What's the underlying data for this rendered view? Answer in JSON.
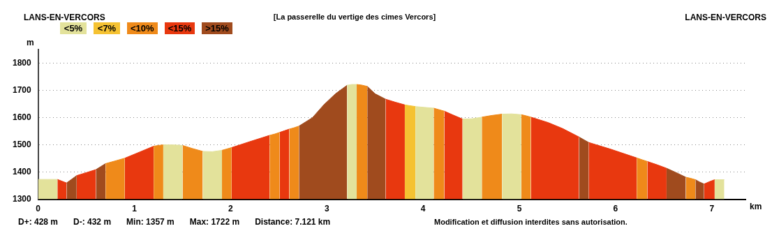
{
  "chart_data": {
    "type": "area",
    "title": "[La passerelle du vertige des cimes Vercors]",
    "ylabel": "m",
    "xlabel": "km",
    "annotations": [
      "LANS-EN-VERCORS",
      "LANS-EN-VERCORS",
      "D+: 428 m",
      "D-: 432 m",
      "Min: 1357 m",
      "Max: 1722 m",
      "Distance: 7.121 km",
      "Modification et diffusion interdites sans autorisation."
    ],
    "xlim": [
      0,
      7.35
    ],
    "xticks": [
      0,
      1,
      2,
      3,
      4,
      5,
      6,
      7
    ],
    "ylim": [
      1300,
      1850
    ],
    "yticks": [
      1300,
      1400,
      1500,
      1600,
      1700,
      1800
    ],
    "grid": "y",
    "legend": "top left",
    "x": [
      0,
      0.1,
      0.2,
      0.25,
      0.295,
      0.35,
      0.4,
      0.5,
      0.6,
      0.65,
      0.7,
      0.8,
      0.9,
      1.05,
      1.2,
      1.25,
      1.3,
      1.4,
      1.5,
      1.6,
      1.71,
      1.81,
      1.91,
      1.96,
      2.01,
      2.2,
      2.405,
      2.46,
      2.51,
      2.56,
      2.61,
      2.66,
      2.71,
      2.85,
      2.97,
      3.09,
      3.21,
      3.26,
      3.31,
      3.36,
      3.42,
      3.5,
      3.61,
      3.71,
      3.81,
      3.86,
      3.92,
      4.01,
      4.11,
      4.16,
      4.22,
      4.31,
      4.41,
      4.51,
      4.61,
      4.71,
      4.82,
      4.92,
      5.02,
      5.07,
      5.12,
      5.3,
      5.45,
      5.62,
      5.67,
      5.72,
      5.95,
      6.22,
      6.27,
      6.33,
      6.43,
      6.53,
      6.63,
      6.73,
      6.78,
      6.83,
      6.87,
      6.92,
      6.97,
      7.03,
      7.08,
      7.13
    ],
    "series": [
      {
        "name": "<5%",
        "color": "#e3e29b",
        "values": [
          1373,
          1373,
          1373,
          null,
          null,
          null,
          null,
          null,
          null,
          null,
          null,
          null,
          null,
          null,
          null,
          null,
          1500,
          1500,
          1498,
          null,
          1476,
          1475,
          1480,
          null,
          null,
          null,
          null,
          null,
          null,
          null,
          null,
          null,
          null,
          null,
          null,
          null,
          1719,
          1722,
          1722,
          null,
          null,
          null,
          null,
          null,
          null,
          null,
          1641,
          1638,
          1635,
          null,
          null,
          null,
          1595,
          1596,
          1602,
          null,
          1613,
          1614,
          1611,
          null,
          null,
          null,
          null,
          null,
          null,
          null,
          null,
          null,
          null,
          null,
          null,
          null,
          null,
          null,
          null,
          null,
          null,
          null,
          null,
          1372,
          1372,
          1372
        ]
      },
      {
        "name": "<7%",
        "color": "#f5c232",
        "values": [
          null,
          null,
          null,
          null,
          null,
          null,
          null,
          null,
          null,
          null,
          null,
          null,
          null,
          null,
          null,
          null,
          null,
          null,
          null,
          null,
          null,
          null,
          null,
          null,
          null,
          null,
          null,
          null,
          null,
          null,
          null,
          null,
          null,
          null,
          null,
          null,
          null,
          null,
          null,
          null,
          null,
          null,
          null,
          null,
          1647,
          1644,
          1641,
          null,
          null,
          null,
          null,
          null,
          null,
          null,
          null,
          null,
          null,
          null,
          null,
          null,
          null,
          null,
          null,
          null,
          null,
          null,
          null,
          null,
          null,
          null,
          null,
          null,
          null,
          null,
          null,
          null,
          null,
          null,
          null,
          null,
          null,
          null
        ]
      },
      {
        "name": "<10%",
        "color": "#ef8a1a",
        "values": [
          null,
          null,
          null,
          null,
          null,
          null,
          null,
          null,
          null,
          null,
          1431,
          1441,
          1451,
          null,
          1495,
          1498,
          1500,
          null,
          1498,
          1487,
          1476,
          null,
          1480,
          1485,
          1490,
          null,
          1535,
          1540,
          1546,
          null,
          1558,
          1563,
          1569,
          null,
          null,
          null,
          null,
          null,
          1722,
          1720,
          1715,
          null,
          null,
          null,
          null,
          null,
          null,
          null,
          1635,
          1630,
          1624,
          null,
          null,
          null,
          1602,
          1608,
          1613,
          null,
          1611,
          1607,
          1602,
          null,
          null,
          null,
          null,
          null,
          null,
          1452,
          1446,
          1439,
          null,
          null,
          null,
          1381,
          1377,
          1372,
          null,
          null,
          null,
          null,
          null,
          null
        ]
      },
      {
        "name": "<15%",
        "color": "#e8380f",
        "values": [
          null,
          null,
          1373,
          1366,
          1360,
          null,
          1387,
          1398,
          1409,
          null,
          null,
          null,
          1451,
          1473,
          1495,
          null,
          null,
          null,
          null,
          null,
          null,
          null,
          null,
          null,
          1490,
          1512,
          1535,
          null,
          1546,
          1552,
          1558,
          null,
          null,
          null,
          null,
          null,
          null,
          null,
          null,
          null,
          null,
          null,
          1668,
          1657,
          1647,
          null,
          null,
          null,
          null,
          null,
          1624,
          1610,
          1595,
          null,
          null,
          null,
          null,
          null,
          null,
          null,
          1602,
          1582,
          1560,
          1529,
          null,
          1509,
          1484,
          1452,
          null,
          1439,
          1427,
          1414,
          null,
          null,
          null,
          null,
          null,
          1356,
          1364,
          1372,
          null,
          null
        ]
      },
      {
        "name": ">15%",
        "color": "#a04b1e",
        "values": [
          null,
          null,
          null,
          null,
          1360,
          1374,
          1387,
          null,
          1409,
          1420,
          1431,
          null,
          null,
          null,
          null,
          null,
          null,
          null,
          null,
          null,
          null,
          null,
          null,
          null,
          null,
          null,
          null,
          null,
          null,
          null,
          null,
          null,
          1569,
          1600,
          1648,
          1688,
          1719,
          null,
          null,
          null,
          1715,
          1688,
          1668,
          null,
          null,
          null,
          null,
          null,
          null,
          null,
          null,
          null,
          null,
          null,
          null,
          null,
          null,
          null,
          null,
          null,
          null,
          null,
          null,
          1529,
          1519,
          1509,
          null,
          null,
          null,
          null,
          null,
          1414,
          1398,
          1381,
          null,
          1372,
          1364,
          1356,
          null,
          null,
          null,
          null
        ]
      }
    ]
  }
}
